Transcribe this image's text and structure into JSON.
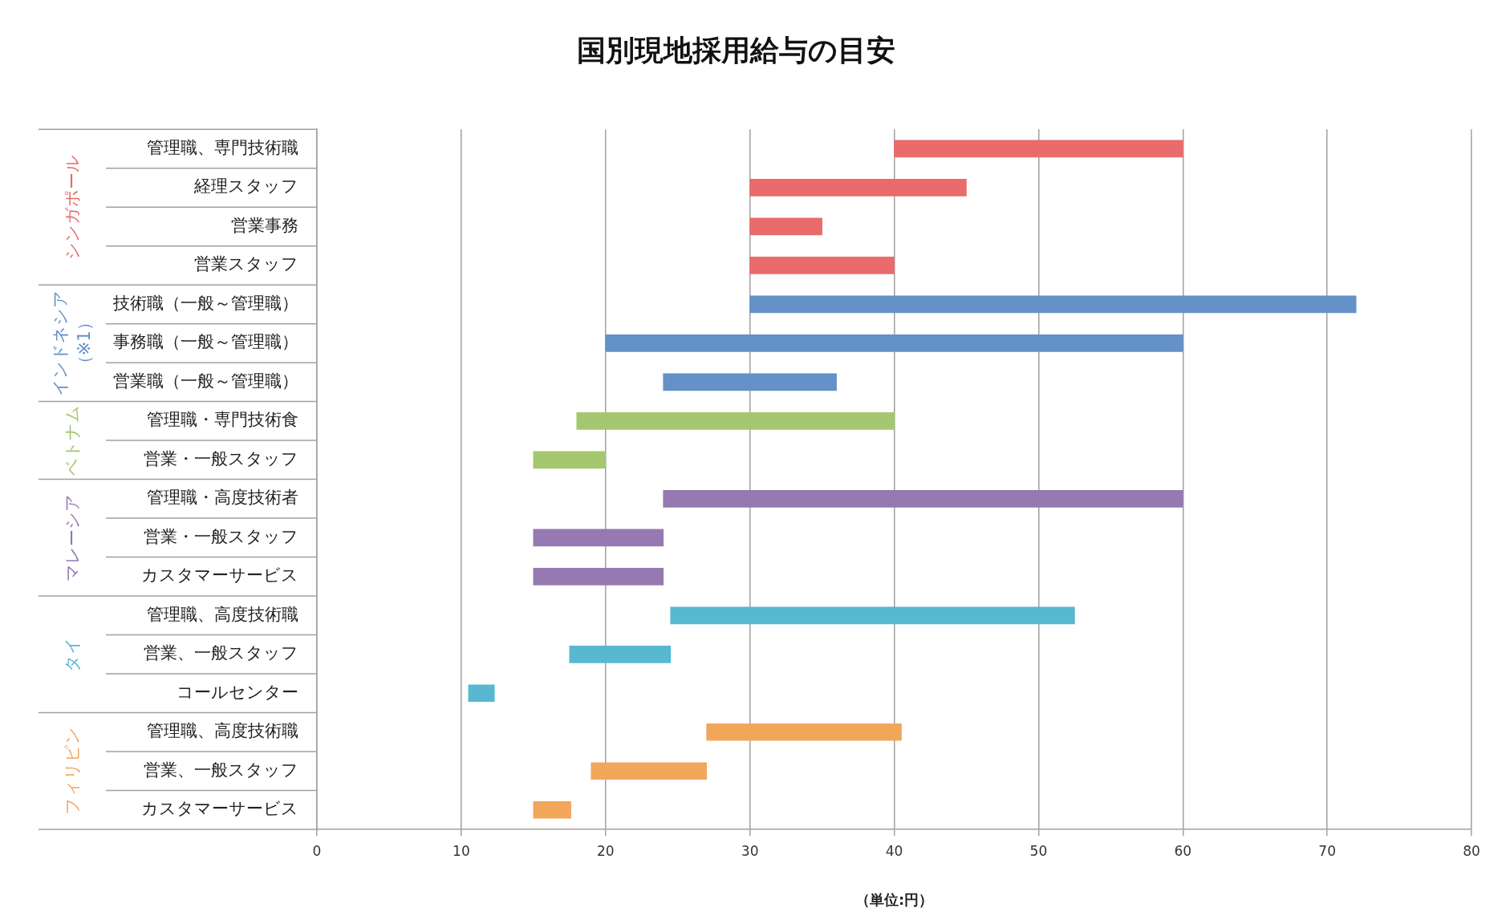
{
  "chart_data": {
    "type": "bar",
    "orientation": "horizontal",
    "title": "国別現地採用給与の目安",
    "xlabel": "（単位:円）",
    "categories": [
      "管理職、専門技術職",
      "経理スタッフ",
      "営業事務",
      "営業スタッフ",
      "技術職（一般～管理職）",
      "事務職（一般～管理職）",
      "営業職（一般～管理職）",
      "管理職・専門技術食",
      "営業・一般スタッフ",
      "管理職・高度技術者",
      "営業・一般スタッフ",
      "カスタマーサービス",
      "管理職、高度技術職",
      "営業、一般スタッフ",
      "コールセンター",
      "管理職、高度技術職",
      "営業、一般スタッフ",
      "カスタマーサービス"
    ],
    "series": [
      {
        "name": "シンガポール",
        "color": "#e96b6b",
        "base": [
          40,
          30,
          30,
          30,
          null,
          null,
          null,
          null,
          null,
          null,
          null,
          null,
          null,
          null,
          null,
          null,
          null,
          null
        ],
        "values": [
          20,
          15,
          5,
          10,
          null,
          null,
          null,
          null,
          null,
          null,
          null,
          null,
          null,
          null,
          null,
          null,
          null,
          null
        ]
      },
      {
        "name": "インドネシア（※1）",
        "color": "#6391c8",
        "base": [
          null,
          null,
          null,
          null,
          30,
          20,
          24,
          null,
          null,
          null,
          null,
          null,
          null,
          null,
          null,
          null,
          null,
          null
        ],
        "values": [
          null,
          null,
          null,
          null,
          42,
          40,
          12,
          null,
          null,
          null,
          null,
          null,
          null,
          null,
          null,
          null,
          null,
          null
        ]
      },
      {
        "name": "ベトナム",
        "color": "#a5c76f",
        "base": [
          null,
          null,
          null,
          null,
          null,
          null,
          null,
          18,
          15,
          null,
          null,
          null,
          null,
          null,
          null,
          null,
          null,
          null
        ],
        "values": [
          null,
          null,
          null,
          null,
          null,
          null,
          null,
          22,
          5,
          null,
          null,
          null,
          null,
          null,
          null,
          null,
          null,
          null
        ]
      },
      {
        "name": "マレーシア",
        "color": "#9679b0",
        "base": [
          null,
          null,
          null,
          null,
          null,
          null,
          null,
          null,
          null,
          24,
          15,
          15,
          null,
          null,
          null,
          null,
          null,
          null
        ],
        "values": [
          null,
          null,
          null,
          null,
          null,
          null,
          null,
          null,
          null,
          36,
          9,
          9,
          null,
          null,
          null,
          null,
          null,
          null
        ]
      },
      {
        "name": "タイ",
        "color": "#58b8d0",
        "base": [
          null,
          null,
          null,
          null,
          null,
          null,
          null,
          null,
          null,
          null,
          null,
          null,
          24.5,
          17.5,
          10.5,
          null,
          null,
          null
        ],
        "values": [
          null,
          null,
          null,
          null,
          null,
          null,
          null,
          null,
          null,
          null,
          null,
          null,
          28,
          7,
          1.8,
          null,
          null,
          null
        ]
      },
      {
        "name": "フィリピン",
        "color": "#f2a65a",
        "base": [
          null,
          null,
          null,
          null,
          null,
          null,
          null,
          null,
          null,
          null,
          null,
          null,
          null,
          null,
          null,
          27,
          19,
          15
        ],
        "values": [
          null,
          null,
          null,
          null,
          null,
          null,
          null,
          null,
          null,
          null,
          null,
          null,
          null,
          null,
          null,
          13.5,
          8,
          2.6
        ]
      }
    ],
    "xlim": [
      0,
      80
    ],
    "xticks": [
      0,
      10,
      20,
      30,
      40,
      50,
      60,
      70,
      80
    ],
    "grid": "x",
    "legend": false
  }
}
